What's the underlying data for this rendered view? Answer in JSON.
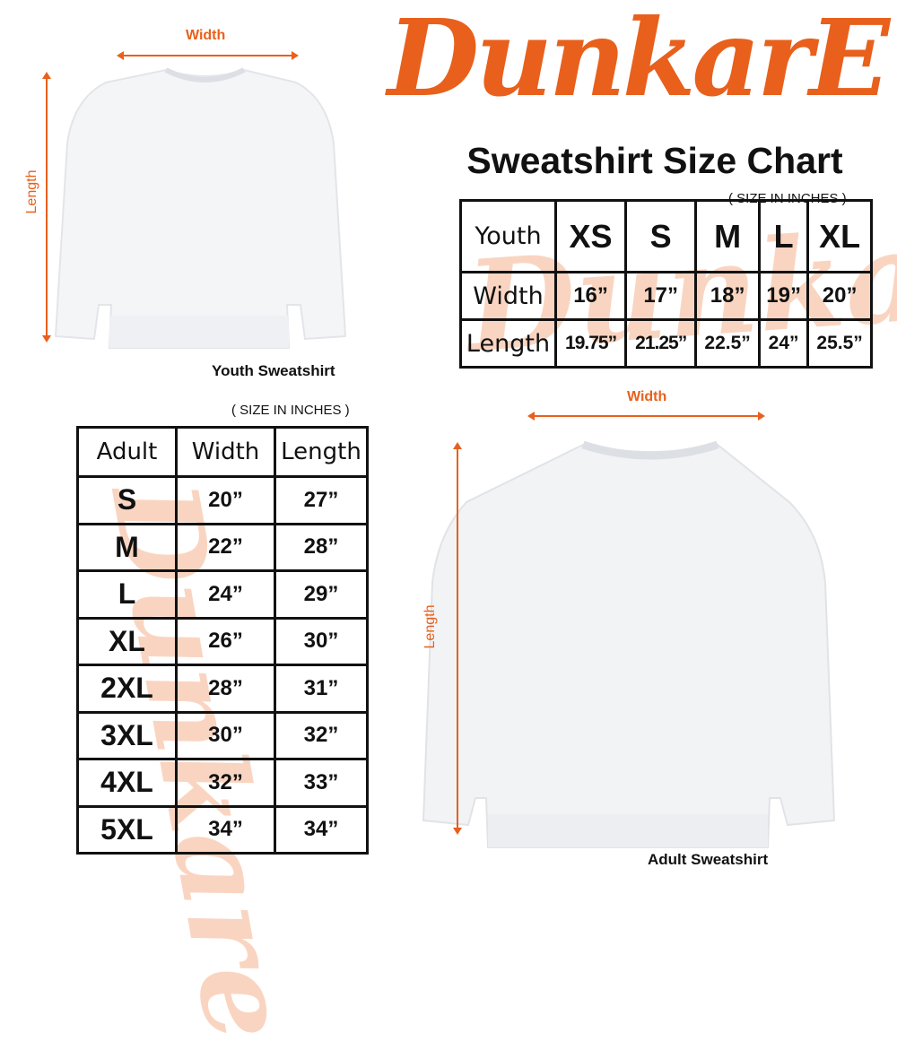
{
  "brand": {
    "logo_text": "DunkarE",
    "color": "#e8601c"
  },
  "title": "Sweatshirt Size Chart",
  "youth": {
    "caption": "Youth Sweatshirt",
    "width_label": "Width",
    "length_label": "Length",
    "unit_note": "( SIZE IN INCHES )",
    "table": {
      "header": [
        "Youth",
        "XS",
        "S",
        "M",
        "L",
        "XL"
      ],
      "rows": [
        [
          "Width",
          "16”",
          "17”",
          "18”",
          "19”",
          "20”"
        ],
        [
          "Length",
          "19.75”",
          "21.25”",
          "22.5”",
          "24”",
          "25.5”"
        ]
      ]
    }
  },
  "adult": {
    "caption": "Adult Sweatshirt",
    "width_label": "Width",
    "length_label": "Length",
    "unit_note": "( SIZE IN INCHES )",
    "table": {
      "header": [
        "Adult",
        "Width",
        "Length"
      ],
      "rows": [
        [
          "S",
          "20”",
          "27”"
        ],
        [
          "M",
          "22”",
          "28”"
        ],
        [
          "L",
          "24”",
          "29”"
        ],
        [
          "XL",
          "26”",
          "30”"
        ],
        [
          "2XL",
          "28”",
          "31”"
        ],
        [
          "3XL",
          "30”",
          "32”"
        ],
        [
          "4XL",
          "32”",
          "33”"
        ],
        [
          "5XL",
          "34”",
          "34”"
        ]
      ]
    }
  }
}
